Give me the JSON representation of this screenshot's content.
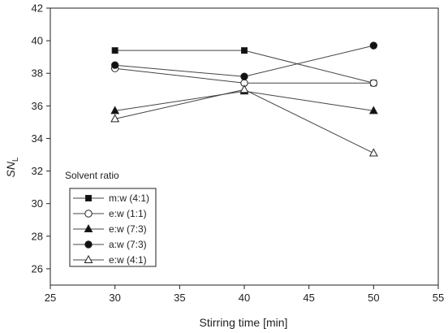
{
  "chart_data": {
    "type": "line",
    "xlabel": "Stirring time [min]",
    "ylabel_main": "SN",
    "ylabel_sub": "L",
    "xlim": [
      25,
      55
    ],
    "ylim": [
      25,
      42
    ],
    "x_ticks": [
      25,
      30,
      35,
      40,
      45,
      50,
      55
    ],
    "x_tick_labels": [
      "25",
      "30",
      "35",
      "40",
      "45",
      "50",
      "55"
    ],
    "y_ticks": [
      26,
      28,
      30,
      32,
      34,
      36,
      38,
      40,
      42
    ],
    "y_tick_labels": [
      "26",
      "28",
      "30",
      "32",
      "34",
      "36",
      "38",
      "40",
      "42"
    ],
    "grid": false,
    "legend_title": "Solvent ratio",
    "legend_position": "bottom-left",
    "x": [
      30,
      40,
      50
    ],
    "series": [
      {
        "name": "m:w  (4:1)",
        "marker": "square",
        "values": [
          39.4,
          39.4,
          37.4
        ]
      },
      {
        "name": "e:w   (1:1)",
        "marker": "circle-open",
        "values": [
          38.3,
          37.4,
          37.4
        ]
      },
      {
        "name": "e:w   (7:3)",
        "marker": "triangle-filled",
        "values": [
          35.7,
          36.9,
          35.7
        ]
      },
      {
        "name": "a:w   (7:3)",
        "marker": "circle-filled",
        "values": [
          38.5,
          37.8,
          39.7
        ]
      },
      {
        "name": "e:w   (4:1)",
        "marker": "triangle-open",
        "values": [
          35.2,
          37.0,
          33.1
        ]
      }
    ],
    "colors": {
      "line": "#444444",
      "axis": "#222222",
      "marker_fill": "#111111",
      "open_fill": "#ffffff"
    }
  }
}
